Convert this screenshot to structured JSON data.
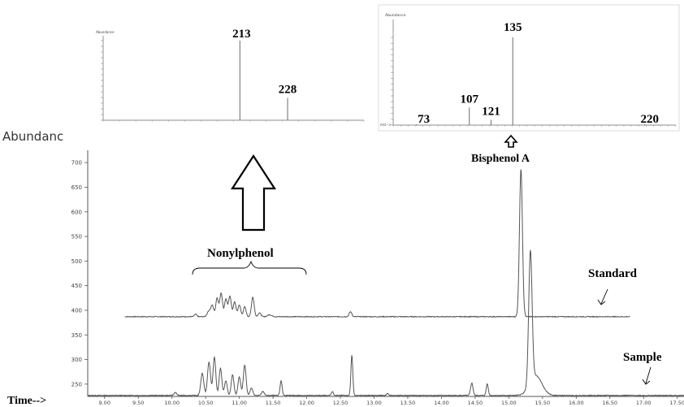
{
  "chart_data": [
    {
      "type": "bar",
      "role": "mass-spectrum-inset-nonylphenol",
      "ylabel": "Abundance",
      "x": [
        213,
        228
      ],
      "values": [
        100,
        28
      ],
      "peak_labels": [
        "213",
        "228"
      ]
    },
    {
      "type": "bar",
      "role": "mass-spectrum-inset-bisphenol-a",
      "ylabel": "Abundance",
      "xlabel": "m/z-->",
      "x": [
        73,
        107,
        121,
        135,
        220
      ],
      "values": [
        1,
        20,
        6,
        100,
        1
      ],
      "peak_labels": [
        "73",
        "107",
        "121",
        "135",
        "220"
      ]
    },
    {
      "type": "line",
      "role": "chromatogram",
      "ylabel": "Abundanc",
      "xlabel": "Time-->",
      "x_ticks": [
        "9.00",
        "9.50",
        "10.00",
        "10.50",
        "11.00",
        "11.50",
        "12.00",
        "12.50",
        "13.00",
        "13.50",
        "14.00",
        "14.50",
        "15.00",
        "15.50",
        "16.00",
        "16.50",
        "17.00",
        "17.50"
      ],
      "y_ticks": [
        "250",
        "300",
        "350",
        "400",
        "450",
        "500",
        "550",
        "600",
        "650",
        "700"
      ],
      "xlim": [
        8.75,
        17.6
      ],
      "ylim": [
        225,
        725
      ],
      "series": [
        {
          "name": "Standard",
          "x_range": [
            9.3,
            16.8
          ],
          "baseline": 387,
          "peaks": [
            {
              "x": 10.35,
              "y": 5,
              "w": 0.018
            },
            {
              "x": 10.55,
              "y": 12,
              "w": 0.025
            },
            {
              "x": 10.6,
              "y": 22,
              "w": 0.02
            },
            {
              "x": 10.67,
              "y": 38,
              "w": 0.02
            },
            {
              "x": 10.73,
              "y": 48,
              "w": 0.02
            },
            {
              "x": 10.8,
              "y": 36,
              "w": 0.02
            },
            {
              "x": 10.86,
              "y": 42,
              "w": 0.02
            },
            {
              "x": 10.93,
              "y": 30,
              "w": 0.02
            },
            {
              "x": 11.0,
              "y": 24,
              "w": 0.02
            },
            {
              "x": 11.08,
              "y": 20,
              "w": 0.02
            },
            {
              "x": 11.2,
              "y": 40,
              "w": 0.02
            },
            {
              "x": 11.3,
              "y": 8,
              "w": 0.02
            },
            {
              "x": 11.45,
              "y": 4,
              "w": 0.03
            },
            {
              "x": 12.65,
              "y": 10,
              "w": 0.02
            },
            {
              "x": 15.18,
              "y": 300,
              "w": 0.022
            }
          ]
        },
        {
          "name": "Sample",
          "x_range": [
            8.75,
            17.6
          ],
          "baseline": 227,
          "peaks": [
            {
              "x": 10.05,
              "y": 6,
              "w": 0.02
            },
            {
              "x": 10.45,
              "y": 45,
              "w": 0.022
            },
            {
              "x": 10.55,
              "y": 68,
              "w": 0.022
            },
            {
              "x": 10.63,
              "y": 78,
              "w": 0.02
            },
            {
              "x": 10.72,
              "y": 55,
              "w": 0.02
            },
            {
              "x": 10.8,
              "y": 30,
              "w": 0.02
            },
            {
              "x": 10.9,
              "y": 42,
              "w": 0.02
            },
            {
              "x": 11.0,
              "y": 38,
              "w": 0.02
            },
            {
              "x": 11.08,
              "y": 62,
              "w": 0.02
            },
            {
              "x": 11.18,
              "y": 15,
              "w": 0.02
            },
            {
              "x": 11.35,
              "y": 8,
              "w": 0.02
            },
            {
              "x": 11.62,
              "y": 30,
              "w": 0.015
            },
            {
              "x": 12.38,
              "y": 8,
              "w": 0.015
            },
            {
              "x": 12.67,
              "y": 82,
              "w": 0.014
            },
            {
              "x": 13.2,
              "y": 4,
              "w": 0.015
            },
            {
              "x": 14.45,
              "y": 25,
              "w": 0.018
            },
            {
              "x": 14.68,
              "y": 24,
              "w": 0.015
            },
            {
              "x": 15.32,
              "y": 268,
              "w": 0.025
            },
            {
              "x": 15.4,
              "y": 40,
              "w": 0.09
            }
          ]
        }
      ],
      "annotations": {
        "nonylphenol": "Nonylphenol",
        "bisphenol": "Bisphenol A",
        "standard": "Standard",
        "sample": "Sample"
      }
    }
  ]
}
